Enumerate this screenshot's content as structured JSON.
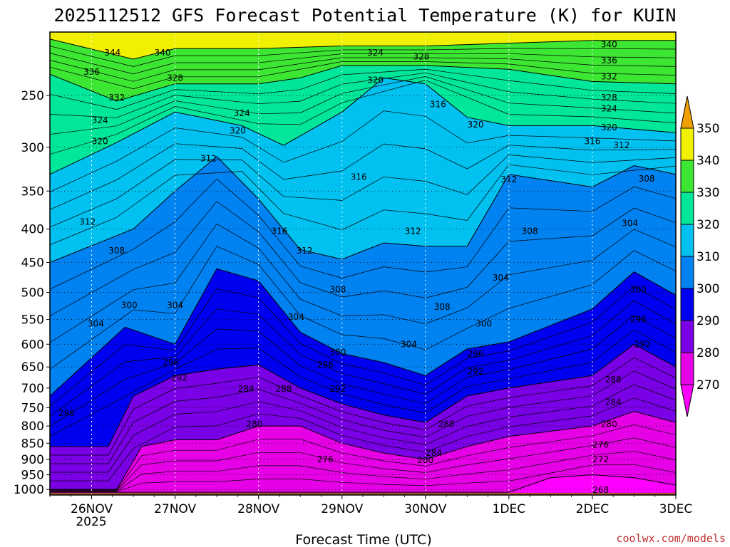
{
  "chart_data": {
    "type": "heatmap",
    "title": "2025112512 GFS Forecast Potential Temperature (K) for KUIN",
    "xlabel": "Forecast Time (UTC)",
    "ylabel": "",
    "x_ticks": [
      "26NOV",
      "27NOV",
      "28NOV",
      "29NOV",
      "30NOV",
      "1DEC",
      "2DEC",
      "3DEC"
    ],
    "x_tick_sub": "2025",
    "xlim": [
      -0.5,
      7.0
    ],
    "y_ticks": [
      250,
      300,
      350,
      400,
      450,
      500,
      550,
      600,
      650,
      700,
      750,
      800,
      850,
      900,
      950,
      1000
    ],
    "ylim": [
      200,
      1020
    ],
    "y_scale": "log-pressure",
    "grid": true,
    "colorbar": {
      "position": "right",
      "labels": [
        350,
        340,
        330,
        320,
        310,
        300,
        290,
        280,
        270
      ],
      "bands": [
        {
          "min": 340,
          "max": 350,
          "color": "#f0f000"
        },
        {
          "min": 330,
          "max": 340,
          "color": "#3ce632"
        },
        {
          "min": 320,
          "max": 330,
          "color": "#00e69b"
        },
        {
          "min": 310,
          "max": 320,
          "color": "#00c1f0"
        },
        {
          "min": 300,
          "max": 310,
          "color": "#0082f0"
        },
        {
          "min": 290,
          "max": 300,
          "color": "#0000f0"
        },
        {
          "min": 280,
          "max": 290,
          "color": "#7a00e6"
        },
        {
          "min": 270,
          "max": 280,
          "color": "#e600e6"
        }
      ],
      "above_color": "#f0a000",
      "below_color": "#ff00ff"
    },
    "ground_color": "#a0522d",
    "series": [
      {
        "name": "340",
        "x": [
          -0.5,
          0.5,
          1.0,
          2.0,
          3.0,
          4.0,
          5.0,
          6.0,
          7.0
        ],
        "y": [
          205,
          220,
          212,
          212,
          210,
          210,
          208,
          206,
          206
        ]
      },
      {
        "name": "330",
        "x": [
          -0.5,
          0.3,
          1.0,
          2.0,
          2.5,
          3.0,
          4.0,
          5.0,
          6.0,
          7.0
        ],
        "y": [
          232,
          255,
          240,
          240,
          235,
          225,
          225,
          228,
          238,
          240
        ]
      },
      {
        "name": "320",
        "x": [
          -0.5,
          0.3,
          1.0,
          1.8,
          2.3,
          3.0,
          3.5,
          4.0,
          4.5,
          5.0,
          6.0,
          7.0
        ],
        "y": [
          330,
          295,
          265,
          278,
          298,
          265,
          235,
          240,
          270,
          278,
          278,
          285
        ]
      },
      {
        "name": "310",
        "x": [
          -0.5,
          0.5,
          1.0,
          1.5,
          2.0,
          2.5,
          3.0,
          3.5,
          4.0,
          4.5,
          5.0,
          6.0,
          6.5,
          7.0
        ],
        "y": [
          450,
          400,
          350,
          310,
          360,
          430,
          445,
          420,
          425,
          425,
          330,
          345,
          320,
          330
        ]
      },
      {
        "name": "300",
        "x": [
          -0.5,
          0.4,
          1.0,
          1.5,
          2.0,
          2.5,
          3.0,
          3.5,
          4.0,
          4.5,
          5.0,
          6.0,
          6.5,
          7.0
        ],
        "y": [
          720,
          565,
          600,
          460,
          480,
          575,
          620,
          640,
          670,
          610,
          595,
          530,
          465,
          505
        ]
      },
      {
        "name": "290",
        "x": [
          -0.5,
          0.2,
          0.5,
          1.0,
          1.5,
          2.0,
          2.5,
          3.0,
          3.5,
          4.0,
          4.5,
          5.0,
          6.0,
          6.5,
          7.0
        ],
        "y": [
          860,
          860,
          720,
          670,
          655,
          645,
          700,
          740,
          770,
          790,
          720,
          700,
          670,
          600,
          650
        ]
      },
      {
        "name": "280",
        "x": [
          -0.5,
          0.3,
          0.6,
          1.0,
          1.5,
          2.0,
          2.5,
          3.0,
          3.5,
          4.0,
          4.5,
          5.0,
          6.0,
          6.5,
          7.0
        ],
        "y": [
          1000,
          1000,
          860,
          840,
          840,
          800,
          800,
          850,
          880,
          900,
          860,
          830,
          800,
          760,
          790
        ]
      },
      {
        "name": "270",
        "x": [
          -0.5,
          5.0,
          5.5,
          6.0,
          6.5,
          7.0
        ],
        "y": [
          1010,
          1010,
          960,
          950,
          960,
          985
        ]
      }
    ],
    "contour_labels": [
      {
        "text": "344",
        "x": 0.25,
        "y": 215
      },
      {
        "text": "340",
        "x": 0.85,
        "y": 215
      },
      {
        "text": "336",
        "x": 0.0,
        "y": 230
      },
      {
        "text": "328",
        "x": 1.0,
        "y": 235
      },
      {
        "text": "332",
        "x": 0.3,
        "y": 252
      },
      {
        "text": "324",
        "x": 3.4,
        "y": 215
      },
      {
        "text": "328",
        "x": 3.95,
        "y": 218
      },
      {
        "text": "340",
        "x": 6.2,
        "y": 209
      },
      {
        "text": "336",
        "x": 6.2,
        "y": 221
      },
      {
        "text": "332",
        "x": 6.2,
        "y": 234
      },
      {
        "text": "320",
        "x": 3.4,
        "y": 237
      },
      {
        "text": "328",
        "x": 6.2,
        "y": 252
      },
      {
        "text": "324",
        "x": 6.2,
        "y": 262
      },
      {
        "text": "316",
        "x": 4.15,
        "y": 258
      },
      {
        "text": "324",
        "x": 1.8,
        "y": 266
      },
      {
        "text": "324",
        "x": 0.1,
        "y": 273
      },
      {
        "text": "320",
        "x": 4.6,
        "y": 277
      },
      {
        "text": "320",
        "x": 6.2,
        "y": 280
      },
      {
        "text": "320",
        "x": 1.75,
        "y": 283
      },
      {
        "text": "316",
        "x": 6.0,
        "y": 294
      },
      {
        "text": "312",
        "x": 6.35,
        "y": 298
      },
      {
        "text": "320",
        "x": 0.1,
        "y": 294
      },
      {
        "text": "312",
        "x": 1.4,
        "y": 312
      },
      {
        "text": "316",
        "x": 3.2,
        "y": 333
      },
      {
        "text": "312",
        "x": 5.0,
        "y": 336
      },
      {
        "text": "308",
        "x": 6.65,
        "y": 335
      },
      {
        "text": "312",
        "x": -0.05,
        "y": 390
      },
      {
        "text": "304",
        "x": 6.45,
        "y": 392
      },
      {
        "text": "316",
        "x": 2.25,
        "y": 403
      },
      {
        "text": "312",
        "x": 3.85,
        "y": 403
      },
      {
        "text": "308",
        "x": 5.25,
        "y": 403
      },
      {
        "text": "308",
        "x": 0.3,
        "y": 432
      },
      {
        "text": "312",
        "x": 2.55,
        "y": 432
      },
      {
        "text": "304",
        "x": 4.9,
        "y": 475
      },
      {
        "text": "308",
        "x": 2.95,
        "y": 495
      },
      {
        "text": "300",
        "x": 6.55,
        "y": 495
      },
      {
        "text": "300",
        "x": 0.45,
        "y": 523
      },
      {
        "text": "304",
        "x": 1.0,
        "y": 523
      },
      {
        "text": "308",
        "x": 4.2,
        "y": 526
      },
      {
        "text": "304",
        "x": 2.45,
        "y": 545
      },
      {
        "text": "296",
        "x": 6.55,
        "y": 550
      },
      {
        "text": "304",
        "x": 0.05,
        "y": 558
      },
      {
        "text": "300",
        "x": 4.7,
        "y": 558
      },
      {
        "text": "292",
        "x": 6.6,
        "y": 600
      },
      {
        "text": "304",
        "x": 3.8,
        "y": 600
      },
      {
        "text": "300",
        "x": 2.95,
        "y": 617
      },
      {
        "text": "296",
        "x": 4.6,
        "y": 620
      },
      {
        "text": "296",
        "x": 0.95,
        "y": 640
      },
      {
        "text": "296",
        "x": 2.8,
        "y": 645
      },
      {
        "text": "292",
        "x": 4.6,
        "y": 660
      },
      {
        "text": "292",
        "x": 1.05,
        "y": 675
      },
      {
        "text": "288",
        "x": 6.25,
        "y": 680
      },
      {
        "text": "284",
        "x": 1.85,
        "y": 702
      },
      {
        "text": "288",
        "x": 2.3,
        "y": 702
      },
      {
        "text": "292",
        "x": 2.95,
        "y": 702
      },
      {
        "text": "284",
        "x": 6.25,
        "y": 735
      },
      {
        "text": "296",
        "x": -0.3,
        "y": 765
      },
      {
        "text": "280",
        "x": 1.95,
        "y": 795
      },
      {
        "text": "288",
        "x": 4.25,
        "y": 795
      },
      {
        "text": "280",
        "x": 6.2,
        "y": 795
      },
      {
        "text": "276",
        "x": 6.1,
        "y": 855
      },
      {
        "text": "284",
        "x": 4.1,
        "y": 880
      },
      {
        "text": "276",
        "x": 2.8,
        "y": 900
      },
      {
        "text": "280",
        "x": 4.0,
        "y": 902
      },
      {
        "text": "272",
        "x": 6.1,
        "y": 900
      },
      {
        "text": "268",
        "x": 6.1,
        "y": 1002
      }
    ]
  },
  "watermark": "coolwx.com/models"
}
